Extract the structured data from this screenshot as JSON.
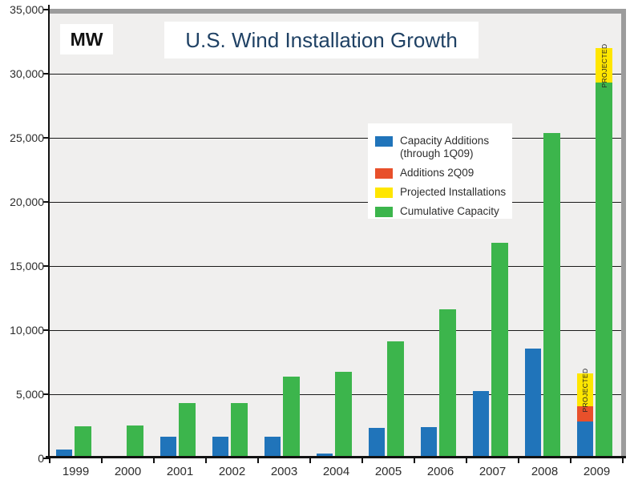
{
  "chart": {
    "title": "U.S. Wind Installation Growth",
    "y_unit": "MW",
    "projected_label": "PROJECTED"
  },
  "legend": {
    "items": [
      {
        "label": "Capacity Additions",
        "label2": "(through 1Q09)",
        "color": "#2074ba"
      },
      {
        "label": "Additions 2Q09",
        "label2": "",
        "color": "#e8502b"
      },
      {
        "label": "Projected Installations",
        "label2": "",
        "color": "#ffe600"
      },
      {
        "label": "Cumulative Capacity",
        "label2": "",
        "color": "#3cb54c"
      }
    ]
  },
  "chart_data": {
    "type": "bar",
    "title": "U.S. Wind Installation Growth",
    "ylabel": "MW",
    "xlabel": "",
    "ylim": [
      0,
      35000
    ],
    "y_ticks": [
      0,
      5000,
      10000,
      15000,
      20000,
      25000,
      30000,
      35000
    ],
    "grid": true,
    "legend_position": "upper-middle",
    "categories": [
      "1999",
      "2000",
      "2001",
      "2002",
      "2003",
      "2004",
      "2005",
      "2006",
      "2007",
      "2008",
      "2009"
    ],
    "series": [
      {
        "name": "Capacity Additions (through 1Q09)",
        "color": "#2074ba",
        "values": [
          660,
          60,
          1700,
          1700,
          1670,
          380,
          2400,
          2450,
          5250,
          8550,
          2900
        ]
      },
      {
        "name": "Additions 2Q09",
        "color": "#e8502b",
        "values": [
          0,
          0,
          0,
          0,
          0,
          0,
          0,
          0,
          0,
          0,
          1150
        ]
      },
      {
        "name": "Projected Installations",
        "color": "#ffe600",
        "values": [
          0,
          0,
          0,
          0,
          0,
          0,
          0,
          0,
          0,
          0,
          2550
        ]
      },
      {
        "name": "Cumulative Capacity",
        "color": "#3cb54c",
        "values": [
          2500,
          2560,
          4300,
          4300,
          6370,
          6740,
          9150,
          11600,
          16800,
          25400,
          29300
        ],
        "projected_cap_2009": 2700
      }
    ],
    "annotations": [
      {
        "text": "PROJECTED",
        "target": "2009 additions bar yellow segment",
        "rotation": -90
      },
      {
        "text": "PROJECTED",
        "target": "2009 cumulative bar yellow cap",
        "rotation": -90
      }
    ]
  }
}
